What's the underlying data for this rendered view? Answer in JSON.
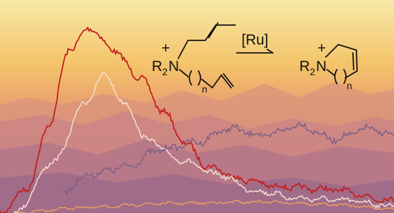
{
  "reactant": {
    "charge": "+",
    "group": "R",
    "subscript": "2",
    "atom": "N",
    "index": "n"
  },
  "reagent": "[Ru]",
  "product": {
    "charge": "+",
    "group": "R",
    "subscript": "2",
    "atom": "N",
    "index": "n"
  }
}
